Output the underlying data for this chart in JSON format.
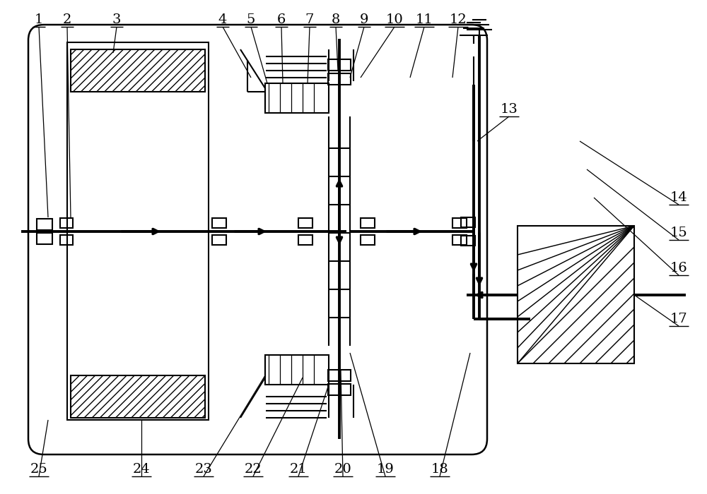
{
  "bg_color": "#ffffff",
  "line_color": "#000000",
  "lw": 1.5,
  "lw_thick": 2.8
}
